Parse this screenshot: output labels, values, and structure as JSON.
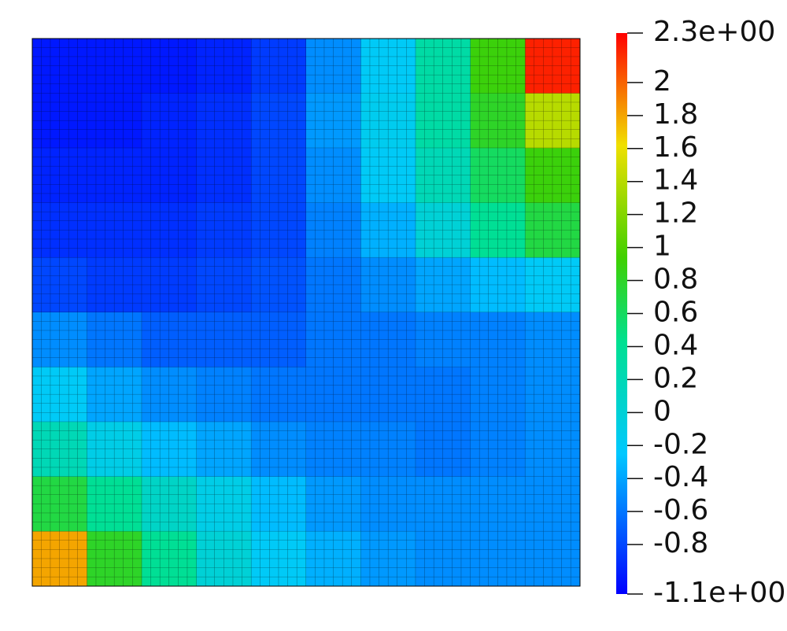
{
  "chart_data": {
    "type": "heatmap",
    "colormap": "jet",
    "mesh": true,
    "values": [
      [
        -1.0,
        -1.0,
        -1.0,
        -0.95,
        -0.85,
        -0.5,
        -0.2,
        0.3,
        0.9,
        2.2
      ],
      [
        -1.0,
        -1.0,
        -0.95,
        -0.9,
        -0.8,
        -0.45,
        -0.15,
        0.3,
        0.8,
        1.4
      ],
      [
        -0.95,
        -0.95,
        -0.95,
        -0.9,
        -0.8,
        -0.5,
        -0.2,
        0.2,
        0.6,
        0.9
      ],
      [
        -0.9,
        -0.9,
        -0.9,
        -0.85,
        -0.8,
        -0.55,
        -0.35,
        0,
        0.4,
        0.7
      ],
      [
        -0.8,
        -0.85,
        -0.85,
        -0.8,
        -0.75,
        -0.6,
        -0.5,
        -0.4,
        -0.3,
        -0.2
      ],
      [
        -0.5,
        -0.6,
        -0.7,
        -0.7,
        -0.7,
        -0.6,
        -0.6,
        -0.55,
        -0.55,
        -0.5
      ],
      [
        -0.2,
        -0.4,
        -0.5,
        -0.55,
        -0.6,
        -0.6,
        -0.6,
        -0.6,
        -0.55,
        -0.5
      ],
      [
        0.2,
        -0.1,
        -0.3,
        -0.4,
        -0.5,
        -0.55,
        -0.55,
        -0.6,
        -0.55,
        -0.5
      ],
      [
        0.7,
        0.4,
        0.1,
        -0.1,
        -0.3,
        -0.45,
        -0.5,
        -0.5,
        -0.5,
        -0.5
      ],
      [
        1.8,
        0.8,
        0.4,
        0.0,
        -0.2,
        -0.35,
        -0.45,
        -0.5,
        -0.5,
        -0.5
      ]
    ],
    "clim": [
      -1.1,
      2.3
    ],
    "cticks": [
      {
        "value": -1.1,
        "label": "-1.1e+00"
      },
      -0.8,
      -0.6,
      -0.4,
      -0.2,
      0,
      0.2,
      0.4,
      0.6,
      0.8,
      1,
      1.2,
      1.4,
      1.6,
      1.8,
      2,
      {
        "value": 2.3,
        "label": "2.3e+00"
      }
    ]
  }
}
